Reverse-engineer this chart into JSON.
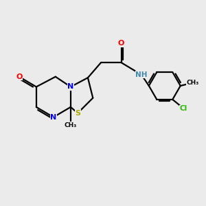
{
  "background_color": "#ebebeb",
  "bond_color": "#000000",
  "atom_colors": {
    "O": "#ff0000",
    "N": "#0000ee",
    "S": "#aaaa00",
    "Cl": "#22bb00",
    "NH": "#4488aa",
    "C": "#000000"
  },
  "figsize": [
    3.0,
    3.0
  ],
  "dpi": 100
}
